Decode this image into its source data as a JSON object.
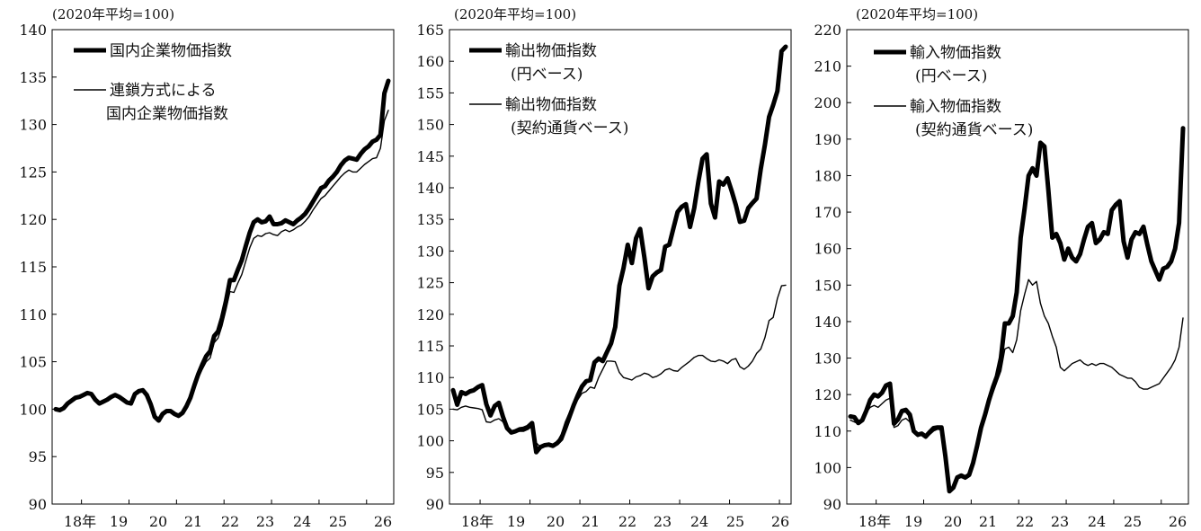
{
  "chart_data": [
    {
      "type": "line",
      "unit_label": "(2020年平均=100)",
      "ylim": [
        90,
        140
      ],
      "y_ticks": [
        90,
        95,
        100,
        105,
        110,
        115,
        120,
        125,
        130,
        135,
        140
      ],
      "x_tick_labels": [
        "18年",
        "19",
        "20",
        "21",
        "22",
        "23",
        "24",
        "25",
        "26"
      ],
      "series": [
        {
          "name": [
            "国内企業物価指数"
          ],
          "style": "thick",
          "values": [
            100.0,
            99.9,
            100.1,
            100.6,
            100.9,
            101.2,
            101.3,
            101.5,
            101.7,
            101.6,
            101.0,
            100.6,
            100.8,
            101.0,
            101.3,
            101.5,
            101.3,
            101.0,
            100.7,
            100.6,
            101.6,
            101.9,
            102.0,
            101.5,
            100.5,
            99.2,
            98.8,
            99.5,
            99.8,
            99.8,
            99.5,
            99.3,
            99.6,
            100.3,
            101.2,
            102.5,
            103.7,
            104.7,
            105.6,
            106.1,
            107.7,
            108.2,
            109.6,
            111.4,
            113.6,
            113.6,
            114.7,
            115.7,
            117.2,
            118.6,
            119.7,
            120.0,
            119.7,
            119.8,
            120.3,
            119.5,
            119.5,
            119.6,
            119.9,
            119.7,
            119.5,
            119.9,
            120.2,
            120.6,
            121.2,
            121.9,
            122.6,
            123.3,
            123.5,
            124.1,
            124.5,
            125.0,
            125.7,
            126.2,
            126.5,
            126.4,
            126.3,
            126.9,
            127.4,
            127.7,
            128.2,
            128.4,
            128.9,
            133.3,
            134.6
          ]
        },
        {
          "name": [
            "連鎖方式による",
            "国内企業物価指数"
          ],
          "style": "thin",
          "values": [
            100.0,
            99.9,
            100.1,
            100.5,
            100.8,
            101.1,
            101.2,
            101.4,
            101.6,
            101.5,
            100.9,
            100.5,
            100.7,
            100.9,
            101.2,
            101.4,
            101.2,
            100.9,
            100.6,
            100.5,
            101.5,
            101.8,
            101.9,
            101.4,
            100.4,
            99.1,
            98.7,
            99.4,
            99.7,
            99.7,
            99.4,
            99.2,
            99.5,
            100.1,
            101.0,
            102.2,
            103.3,
            104.2,
            105.0,
            105.4,
            107.0,
            107.5,
            108.8,
            110.5,
            112.4,
            112.3,
            113.3,
            114.2,
            115.6,
            117.0,
            118.0,
            118.3,
            118.2,
            118.5,
            118.6,
            118.4,
            118.3,
            118.7,
            118.9,
            118.7,
            118.9,
            119.2,
            119.4,
            119.8,
            120.3,
            121.0,
            121.6,
            122.2,
            122.5,
            123.0,
            123.5,
            124.0,
            124.5,
            124.9,
            125.2,
            125.0,
            125.0,
            125.4,
            125.8,
            126.1,
            126.4,
            126.5,
            127.5,
            130.4,
            131.5
          ]
        }
      ]
    },
    {
      "type": "line",
      "unit_label": "(2020年平均=100)",
      "ylim": [
        90,
        165
      ],
      "y_ticks": [
        90,
        95,
        100,
        105,
        110,
        115,
        120,
        125,
        130,
        135,
        140,
        145,
        150,
        155,
        160,
        165
      ],
      "x_tick_labels": [
        "18年",
        "19",
        "20",
        "21",
        "22",
        "23",
        "24",
        "25",
        "26"
      ],
      "series": [
        {
          "name": [
            "輸出物価指数",
            "(円ベース)"
          ],
          "style": "thick",
          "values": [
            108.0,
            105.7,
            107.7,
            107.4,
            107.8,
            108.0,
            108.5,
            108.8,
            105.8,
            104.0,
            105.5,
            106.0,
            103.8,
            102.0,
            101.3,
            101.5,
            101.8,
            101.9,
            102.2,
            102.8,
            98.2,
            99.0,
            99.3,
            99.4,
            99.2,
            99.6,
            100.3,
            102.0,
            103.8,
            105.6,
            107.2,
            108.6,
            109.4,
            109.6,
            112.4,
            113.0,
            112.6,
            114.0,
            115.4,
            118.0,
            124.5,
            127.3,
            131.0,
            128.1,
            132.0,
            133.5,
            129.0,
            124.1,
            126.0,
            126.6,
            127.0,
            130.7,
            131.0,
            133.6,
            136.2,
            137.0,
            137.4,
            133.8,
            136.8,
            141.0,
            144.6,
            145.3,
            137.5,
            135.3,
            141.0,
            140.5,
            141.5,
            139.5,
            137.3,
            134.6,
            134.8,
            136.8,
            137.6,
            138.3,
            143.0,
            146.8,
            151.2,
            153.1,
            155.3,
            161.6,
            162.3
          ]
        },
        {
          "name": [
            "輸出物価指数",
            "(契約通貨ベース)"
          ],
          "style": "thin",
          "values": [
            105.0,
            104.9,
            105.3,
            105.5,
            105.3,
            105.2,
            105.1,
            104.9,
            103.0,
            102.9,
            103.3,
            103.5,
            103.0,
            101.8,
            101.3,
            101.4,
            101.5,
            101.5,
            101.8,
            102.3,
            99.7,
            99.0,
            99.5,
            99.6,
            99.4,
            99.8,
            101.0,
            103.0,
            104.5,
            106.0,
            106.5,
            107.5,
            107.8,
            108.5,
            108.3,
            110.0,
            111.3,
            112.6,
            112.6,
            112.5,
            110.8,
            110.0,
            109.8,
            109.6,
            110.1,
            110.3,
            110.7,
            110.5,
            110.0,
            110.2,
            110.6,
            111.2,
            111.4,
            111.1,
            111.0,
            111.6,
            112.1,
            112.6,
            113.2,
            113.5,
            113.5,
            113.0,
            112.6,
            112.5,
            112.8,
            112.6,
            112.2,
            112.8,
            113.0,
            111.7,
            111.3,
            111.8,
            112.6,
            113.8,
            114.5,
            116.3,
            119.0,
            119.5,
            122.5,
            124.5,
            124.6
          ]
        }
      ]
    },
    {
      "type": "line",
      "unit_label": "(2020年平均=100)",
      "ylim": [
        90,
        220
      ],
      "y_ticks": [
        90,
        100,
        110,
        120,
        130,
        140,
        150,
        160,
        170,
        180,
        190,
        200,
        210,
        220
      ],
      "x_tick_labels": [
        "18年",
        "19",
        "20",
        "21",
        "22",
        "23",
        "24",
        "25",
        "26"
      ],
      "series": [
        {
          "name": [
            "輸入物価指数",
            "(円ベース)"
          ],
          "style": "thick",
          "values": [
            114.0,
            113.8,
            112.2,
            113.0,
            115.5,
            118.5,
            120.0,
            119.5,
            120.5,
            122.5,
            123.0,
            112.0,
            113.2,
            115.5,
            115.8,
            114.5,
            110.0,
            109.0,
            109.3,
            108.5,
            109.7,
            110.8,
            111.0,
            111.0,
            103.0,
            93.5,
            94.5,
            97.3,
            97.8,
            97.3,
            98.0,
            101.3,
            106.0,
            111.0,
            114.5,
            118.5,
            122.0,
            125.0,
            130.0,
            139.5,
            139.5,
            141.5,
            148.0,
            163.0,
            171.0,
            180.0,
            182.0,
            180.0,
            189.0,
            188.0,
            176.0,
            163.0,
            164.0,
            161.5,
            157.0,
            160.0,
            157.5,
            156.5,
            158.5,
            162.5,
            166.0,
            167.0,
            161.5,
            162.5,
            164.5,
            164.0,
            170.5,
            172.0,
            173.0,
            162.0,
            157.5,
            162.5,
            164.5,
            164.0,
            166.0,
            161.0,
            156.5,
            154.0,
            151.5,
            154.5,
            155.0,
            156.5,
            160.0,
            167.0,
            193.0
          ]
        },
        {
          "name": [
            "輸入物価指数",
            "(契約通貨ベース)"
          ],
          "style": "thin",
          "values": [
            113.0,
            112.5,
            112.0,
            113.5,
            115.0,
            116.5,
            117.0,
            116.5,
            117.5,
            118.5,
            119.0,
            111.0,
            111.5,
            113.0,
            113.5,
            112.5,
            109.5,
            108.5,
            109.0,
            108.0,
            109.0,
            110.0,
            110.5,
            110.3,
            103.0,
            93.5,
            94.5,
            97.0,
            97.3,
            96.8,
            97.5,
            100.5,
            105.0,
            110.0,
            113.5,
            117.5,
            120.5,
            123.5,
            126.5,
            132.5,
            133.0,
            131.5,
            135.0,
            143.0,
            147.5,
            151.5,
            150.0,
            151.0,
            145.0,
            141.5,
            139.5,
            136.0,
            133.0,
            127.5,
            126.5,
            127.5,
            128.5,
            129.0,
            129.5,
            128.5,
            128.0,
            128.5,
            128.0,
            128.5,
            128.5,
            128.0,
            127.5,
            126.5,
            125.5,
            125.0,
            124.5,
            124.5,
            123.5,
            122.0,
            121.5,
            121.5,
            122.0,
            122.5,
            123.0,
            124.5,
            126.0,
            127.5,
            129.5,
            133.0,
            141.0
          ]
        }
      ]
    }
  ]
}
